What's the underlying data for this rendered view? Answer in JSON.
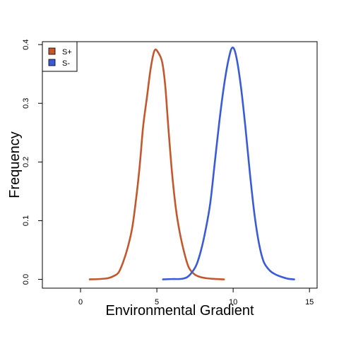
{
  "chart_data": {
    "type": "line",
    "title": "",
    "xlabel": "Environmental Gradient",
    "ylabel": "Frequency",
    "xlim": [
      -2.5,
      15.5
    ],
    "ylim": [
      -0.015,
      0.405
    ],
    "xticks": [
      0,
      5,
      10,
      15
    ],
    "yticks": [
      0.0,
      0.1,
      0.2,
      0.3,
      0.4
    ],
    "x_tick_labels": [
      "0",
      "5",
      "10",
      "15"
    ],
    "y_tick_labels": [
      "0.0",
      "0.1",
      "0.2",
      "0.3",
      "0.4"
    ],
    "grid": false,
    "legend_position": "top-left",
    "series": [
      {
        "name": "S+",
        "color": "#c4572c",
        "points": [
          [
            0.6,
            0.0
          ],
          [
            1.2,
            0.0005
          ],
          [
            1.8,
            0.002
          ],
          [
            2.2,
            0.006
          ],
          [
            2.5,
            0.012
          ],
          [
            2.8,
            0.03
          ],
          [
            3.1,
            0.055
          ],
          [
            3.4,
            0.09
          ],
          [
            3.7,
            0.15
          ],
          [
            3.9,
            0.2
          ],
          [
            4.1,
            0.26
          ],
          [
            4.35,
            0.31
          ],
          [
            4.6,
            0.36
          ],
          [
            4.85,
            0.39
          ],
          [
            5.1,
            0.386
          ],
          [
            5.35,
            0.37
          ],
          [
            5.55,
            0.33
          ],
          [
            5.75,
            0.26
          ],
          [
            6.0,
            0.18
          ],
          [
            6.25,
            0.12
          ],
          [
            6.5,
            0.08
          ],
          [
            6.8,
            0.045
          ],
          [
            7.1,
            0.02
          ],
          [
            7.5,
            0.008
          ],
          [
            8.0,
            0.003
          ],
          [
            8.6,
            0.001
          ],
          [
            9.4,
            0.0
          ]
        ]
      },
      {
        "name": "S-",
        "color": "#3a5bd9",
        "points": [
          [
            5.4,
            0.0
          ],
          [
            6.0,
            0.0005
          ],
          [
            6.6,
            0.0008
          ],
          [
            7.0,
            0.004
          ],
          [
            7.3,
            0.012
          ],
          [
            7.6,
            0.025
          ],
          [
            7.9,
            0.05
          ],
          [
            8.2,
            0.085
          ],
          [
            8.5,
            0.13
          ],
          [
            8.8,
            0.2
          ],
          [
            9.1,
            0.27
          ],
          [
            9.4,
            0.33
          ],
          [
            9.7,
            0.375
          ],
          [
            9.95,
            0.395
          ],
          [
            10.2,
            0.38
          ],
          [
            10.5,
            0.33
          ],
          [
            10.8,
            0.26
          ],
          [
            11.1,
            0.18
          ],
          [
            11.4,
            0.11
          ],
          [
            11.7,
            0.06
          ],
          [
            12.0,
            0.03
          ],
          [
            12.4,
            0.015
          ],
          [
            12.8,
            0.008
          ],
          [
            13.2,
            0.004
          ],
          [
            13.6,
            0.001
          ],
          [
            14.0,
            0.0
          ]
        ]
      }
    ]
  }
}
